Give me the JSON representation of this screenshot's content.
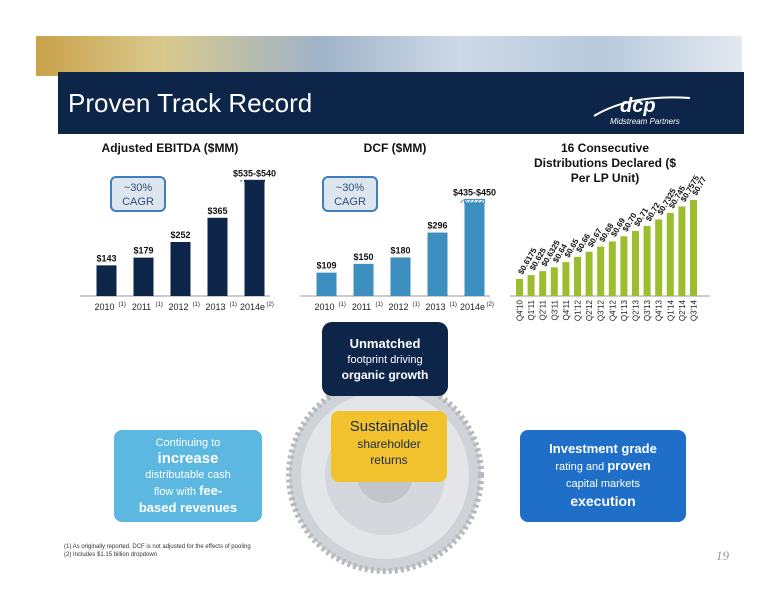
{
  "slide": {
    "title": "Proven Track Record",
    "logo_text": "Midstream Partners",
    "page_number": "19"
  },
  "colors": {
    "navy": "#0c2548",
    "teal": "#3d8fbf",
    "green": "#9cbd2e",
    "sky": "#5cb8e0",
    "blue": "#1f6fc9",
    "gold": "#f2c22e"
  },
  "boxes": {
    "unmatched": {
      "line1": "Unmatched",
      "line2": "footprint driving",
      "line3": "organic growth"
    },
    "sustainable": {
      "line1": "Sustainable",
      "line2": "shareholder",
      "line3": "returns"
    },
    "increase": {
      "line1": "Continuing to",
      "line2": "increase",
      "line3": "distributable cash",
      "line4": "flow with",
      "line4b": "fee-",
      "line5": "based revenues"
    },
    "investment": {
      "line1": "Investment grade",
      "line2a": "rating and",
      "line2b": "proven",
      "line3": "capital markets",
      "line4": "execution"
    }
  },
  "footnotes": {
    "n1": "(1) As originally reported. DCF is not adjusted for the effects of pooling",
    "n2": "(2) Includes $1.15 billion dropdown"
  },
  "chart_data": [
    {
      "type": "bar",
      "title": "Adjusted EBITDA ($MM)",
      "cagr_label": "~30% CAGR",
      "categories": [
        "2010",
        "2011",
        "2012",
        "2013",
        "2014e"
      ],
      "superscripts": [
        "(1)",
        "(1)",
        "(1)",
        "(1)",
        "(2)"
      ],
      "values": [
        143,
        179,
        252,
        365,
        540
      ],
      "labels": [
        "$143",
        "$179",
        "$252",
        "$365",
        "$535-$540"
      ],
      "range_low": [
        null,
        null,
        null,
        null,
        535
      ],
      "color": "#0c2548"
    },
    {
      "type": "bar",
      "title": "DCF ($MM)",
      "cagr_label": "~30% CAGR",
      "categories": [
        "2010",
        "2011",
        "2012",
        "2013",
        "2014e"
      ],
      "superscripts": [
        "(1)",
        "(1)",
        "(1)",
        "(1)",
        "(2)"
      ],
      "values": [
        109,
        150,
        180,
        296,
        450
      ],
      "labels": [
        "$109",
        "$150",
        "$180",
        "$296",
        "$435-$450"
      ],
      "range_low": [
        null,
        null,
        null,
        null,
        435
      ],
      "color": "#3d8fbf"
    },
    {
      "type": "bar",
      "title": "16 Consecutive Distributions Declared ($ Per LP Unit)",
      "categories": [
        "Q4'10",
        "Q1'11",
        "Q2'11",
        "Q3'11",
        "Q4'11",
        "Q1'12",
        "Q2'12",
        "Q3'12",
        "Q4'12",
        "Q1'13",
        "Q2'13",
        "Q3'13",
        "Q4'13",
        "Q1'14",
        "Q2'14",
        "Q3'14"
      ],
      "values": [
        0.6175,
        0.625,
        0.6325,
        0.64,
        0.65,
        0.66,
        0.67,
        0.68,
        0.69,
        0.7,
        0.71,
        0.72,
        0.7325,
        0.745,
        0.7575,
        0.77
      ],
      "labels": [
        "$0.6175",
        "$0.625",
        "$0.6325",
        "$0.64",
        "$0.65",
        "$0.66",
        "$0.67",
        "$0.68",
        "$0.69",
        "$0.70",
        "$0.71",
        "$0.72",
        "$0.7325",
        "$0.745",
        "$0.7575",
        "$0.77"
      ],
      "color": "#9cbd2e"
    }
  ]
}
